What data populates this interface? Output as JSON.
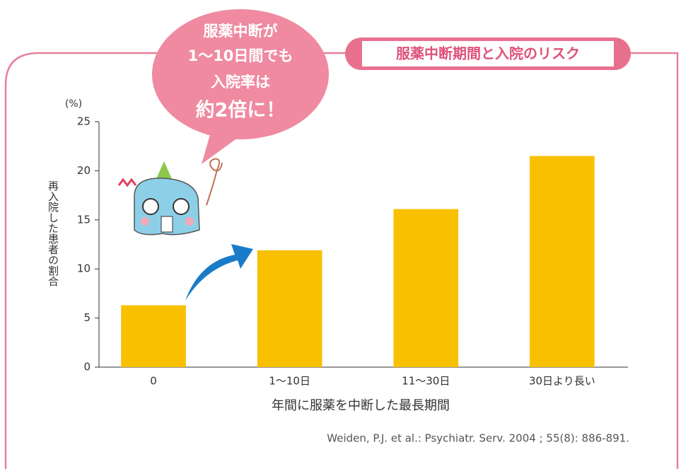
{
  "chart_data": {
    "type": "bar",
    "title": "服薬中断期間と入院のリスク",
    "callout": [
      "服薬中断が",
      "1〜10日間でも",
      "入院率は",
      "約2倍に！"
    ],
    "y_unit": "(%)",
    "y_label": "再入院した患者の割合",
    "x_label": "年間に服薬を中断した最長期間",
    "source": "Weiden, P.J. et al.: Psychiatr. Serv. 2004 ; 55(8): 886-891.",
    "categories": [
      "0",
      "1〜10日",
      "11〜30日",
      "30日より長い"
    ],
    "values": [
      6.3,
      11.9,
      16.1,
      21.5
    ],
    "color": "#f9c000",
    "ylim": [
      0,
      25
    ],
    "yticks": [
      0,
      5,
      10,
      15,
      20,
      25
    ]
  }
}
